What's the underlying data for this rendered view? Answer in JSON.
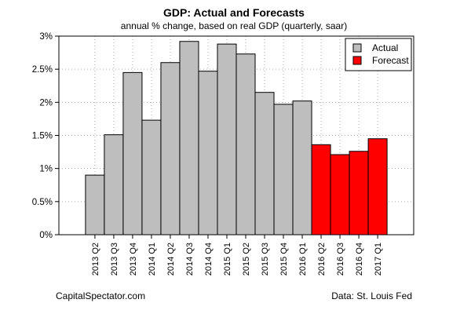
{
  "chart_data": {
    "type": "bar",
    "title": "GDP: Actual and Forecasts",
    "subtitle": "annual % change, based on real GDP (quarterly, saar)",
    "categories": [
      "2013 Q2",
      "2013 Q3",
      "2013 Q4",
      "2014 Q1",
      "2014 Q2",
      "2014 Q3",
      "2014 Q4",
      "2015 Q1",
      "2015 Q2",
      "2015 Q3",
      "2015 Q4",
      "2016 Q1",
      "2016 Q2",
      "2016 Q3",
      "2016 Q4",
      "2017 Q1"
    ],
    "series": [
      {
        "name": "Actual",
        "color": "#bebebe",
        "values": [
          0.9,
          1.51,
          2.45,
          1.73,
          2.6,
          2.92,
          2.47,
          2.88,
          2.73,
          2.15,
          1.97,
          2.02,
          null,
          null,
          null,
          null
        ]
      },
      {
        "name": "Forecast",
        "color": "#ff0000",
        "values": [
          null,
          null,
          null,
          null,
          null,
          null,
          null,
          null,
          null,
          null,
          null,
          null,
          1.36,
          1.21,
          1.26,
          1.45
        ]
      }
    ],
    "ylim": [
      0,
      3
    ],
    "yticks": [
      0,
      0.5,
      1,
      1.5,
      2,
      2.5,
      3
    ],
    "ytick_labels": [
      "0%",
      "0.5%",
      "1%",
      "1.5%",
      "2%",
      "2.5%",
      "3%"
    ],
    "xlabel": "",
    "ylabel": "",
    "grid": true,
    "legend_position": "top-right"
  },
  "footer": {
    "source_left": "CapitalSpectator.com",
    "source_right": "Data: St. Louis Fed"
  }
}
